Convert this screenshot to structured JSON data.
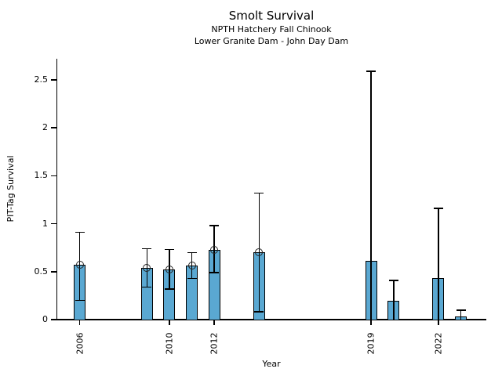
{
  "chart_data": {
    "type": "bar",
    "title": "Smolt Survival",
    "subtitle1": "NPTH Hatchery Fall Chinook",
    "subtitle2": "Lower Granite Dam - John Day Dam",
    "xlabel": "Year",
    "ylabel": "PIT-Tag Survival",
    "bar_color": "#5AA8D2",
    "bar_edge_color": "#000000",
    "xlim": [
      2005,
      2024.1
    ],
    "ylim": [
      0,
      2.72
    ],
    "x_ticks": [
      "2006",
      "2010",
      "2012",
      "2019",
      "2022"
    ],
    "x_tick_years": [
      2006,
      2010,
      2012,
      2019,
      2022
    ],
    "y_ticks": [
      0,
      0.5,
      1,
      1.5,
      2,
      2.5
    ],
    "y_tick_labels": [
      "0",
      "0.5",
      "1",
      "1.5",
      "2",
      "2.5"
    ],
    "grid": false,
    "legend": "none",
    "points": [
      {
        "year": 2006,
        "value": 0.57,
        "ci_low": 0.2,
        "ci_high": 0.91,
        "marker": true
      },
      {
        "year": 2009,
        "value": 0.54,
        "ci_low": 0.34,
        "ci_high": 0.74,
        "marker": true
      },
      {
        "year": 2010,
        "value": 0.52,
        "ci_low": 0.32,
        "ci_high": 0.73,
        "marker": true
      },
      {
        "year": 2011,
        "value": 0.56,
        "ci_low": 0.43,
        "ci_high": 0.7,
        "marker": true
      },
      {
        "year": 2012,
        "value": 0.73,
        "ci_low": 0.49,
        "ci_high": 0.98,
        "marker": true
      },
      {
        "year": 2014,
        "value": 0.7,
        "ci_low": 0.08,
        "ci_high": 1.32,
        "marker": true
      },
      {
        "year": 2019,
        "value": 0.61,
        "ci_low": 0.0,
        "ci_high": 2.59,
        "marker": false
      },
      {
        "year": 2020,
        "value": 0.2,
        "ci_low": 0.0,
        "ci_high": 0.41,
        "marker": false
      },
      {
        "year": 2022,
        "value": 0.43,
        "ci_low": 0.0,
        "ci_high": 1.16,
        "marker": false
      },
      {
        "year": 2023,
        "value": 0.03,
        "ci_low": 0.0,
        "ci_high": 0.1,
        "marker": false
      }
    ]
  }
}
